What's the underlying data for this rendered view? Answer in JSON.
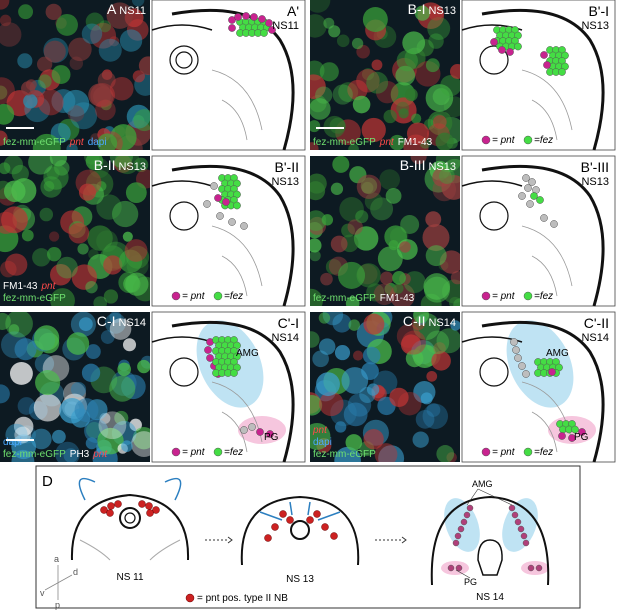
{
  "photos": [
    {
      "label": "A",
      "stage": "NS11",
      "stain_lines": [
        [
          {
            "text": "fez-mm-eGFP",
            "color": "#6fe06f"
          },
          {
            "text": "pnt",
            "color": "#ff4a4a"
          },
          {
            "text": "dapi",
            "color": "#4aa8ff"
          }
        ]
      ]
    },
    {
      "label": "B-I",
      "stage": "NS13",
      "stain_lines": [
        [
          {
            "text": "fez-mm-eGFP",
            "color": "#6fe06f"
          },
          {
            "text": "pnt",
            "color": "#ff4a4a"
          },
          {
            "text": "FM1-43",
            "color": "#ffffff"
          }
        ]
      ]
    },
    {
      "label": "B-II",
      "stage": "NS13",
      "stain_lines": [
        [
          {
            "text": "FM1-43",
            "color": "#ffffff"
          },
          {
            "text": "pnt",
            "color": "#ff4a4a"
          }
        ],
        [
          {
            "text": "fez-mm-eGFP",
            "color": "#6fe06f"
          }
        ]
      ]
    },
    {
      "label": "B-III",
      "stage": "NS13",
      "stain_lines": [
        [
          {
            "text": "fez-mm-eGFP",
            "color": "#6fe06f"
          },
          {
            "text": "FM1-43",
            "color": "#ffffff"
          }
        ]
      ]
    },
    {
      "label": "C-I",
      "stage": "NS14",
      "stain_lines": [
        [
          {
            "text": "dapi",
            "color": "#4aa8ff"
          }
        ],
        [
          {
            "text": "fez-mm-eGFP",
            "color": "#6fe06f"
          },
          {
            "text": "PH3",
            "color": "#ffffff"
          },
          {
            "text": "pnt",
            "color": "#ff4a4a"
          }
        ]
      ]
    },
    {
      "label": "C-II",
      "stage": "NS14",
      "stain_lines": [
        [
          {
            "text": "pnt",
            "color": "#ff4a4a"
          }
        ],
        [
          {
            "text": "dapi",
            "color": "#4aa8ff"
          }
        ],
        [
          {
            "text": "fez-mm-eGFP",
            "color": "#6fe06f"
          }
        ]
      ]
    }
  ],
  "schematics": [
    {
      "label": "A'",
      "stage": "NS11"
    },
    {
      "label": "B'-I",
      "stage": "NS13",
      "legend": [
        {
          "text": "= pnt",
          "color": "#c8238f"
        },
        {
          "text": "=fez",
          "color": "#44dd44"
        }
      ]
    },
    {
      "label": "B'-II",
      "stage": "NS13",
      "legend": [
        {
          "text": "= pnt",
          "color": "#c8238f"
        },
        {
          "text": "=fez",
          "color": "#44dd44"
        }
      ]
    },
    {
      "label": "B'-III",
      "stage": "NS13",
      "legend": [
        {
          "text": "= pnt",
          "color": "#c8238f"
        },
        {
          "text": "=fez",
          "color": "#44dd44"
        }
      ]
    },
    {
      "label": "C'-I",
      "stage": "NS14",
      "regions": [
        "AMG",
        "PG"
      ],
      "legend": [
        {
          "text": "= pnt",
          "color": "#c8238f"
        },
        {
          "text": "=fez",
          "color": "#44dd44"
        }
      ]
    },
    {
      "label": "C'-II",
      "stage": "NS14",
      "regions": [
        "AMG",
        "PG"
      ],
      "legend": [
        {
          "text": "= pnt",
          "color": "#c8238f"
        },
        {
          "text": "=fez",
          "color": "#44dd44"
        }
      ]
    }
  ],
  "panel_d": {
    "label": "D",
    "stages": [
      "NS 11",
      "NS 13",
      "NS 14"
    ],
    "regions": [
      "AMG",
      "PG"
    ],
    "legend": "= pnt pos. type II NB",
    "legend_color": "#cc2222",
    "axes": [
      "a",
      "d",
      "v",
      "p"
    ]
  }
}
